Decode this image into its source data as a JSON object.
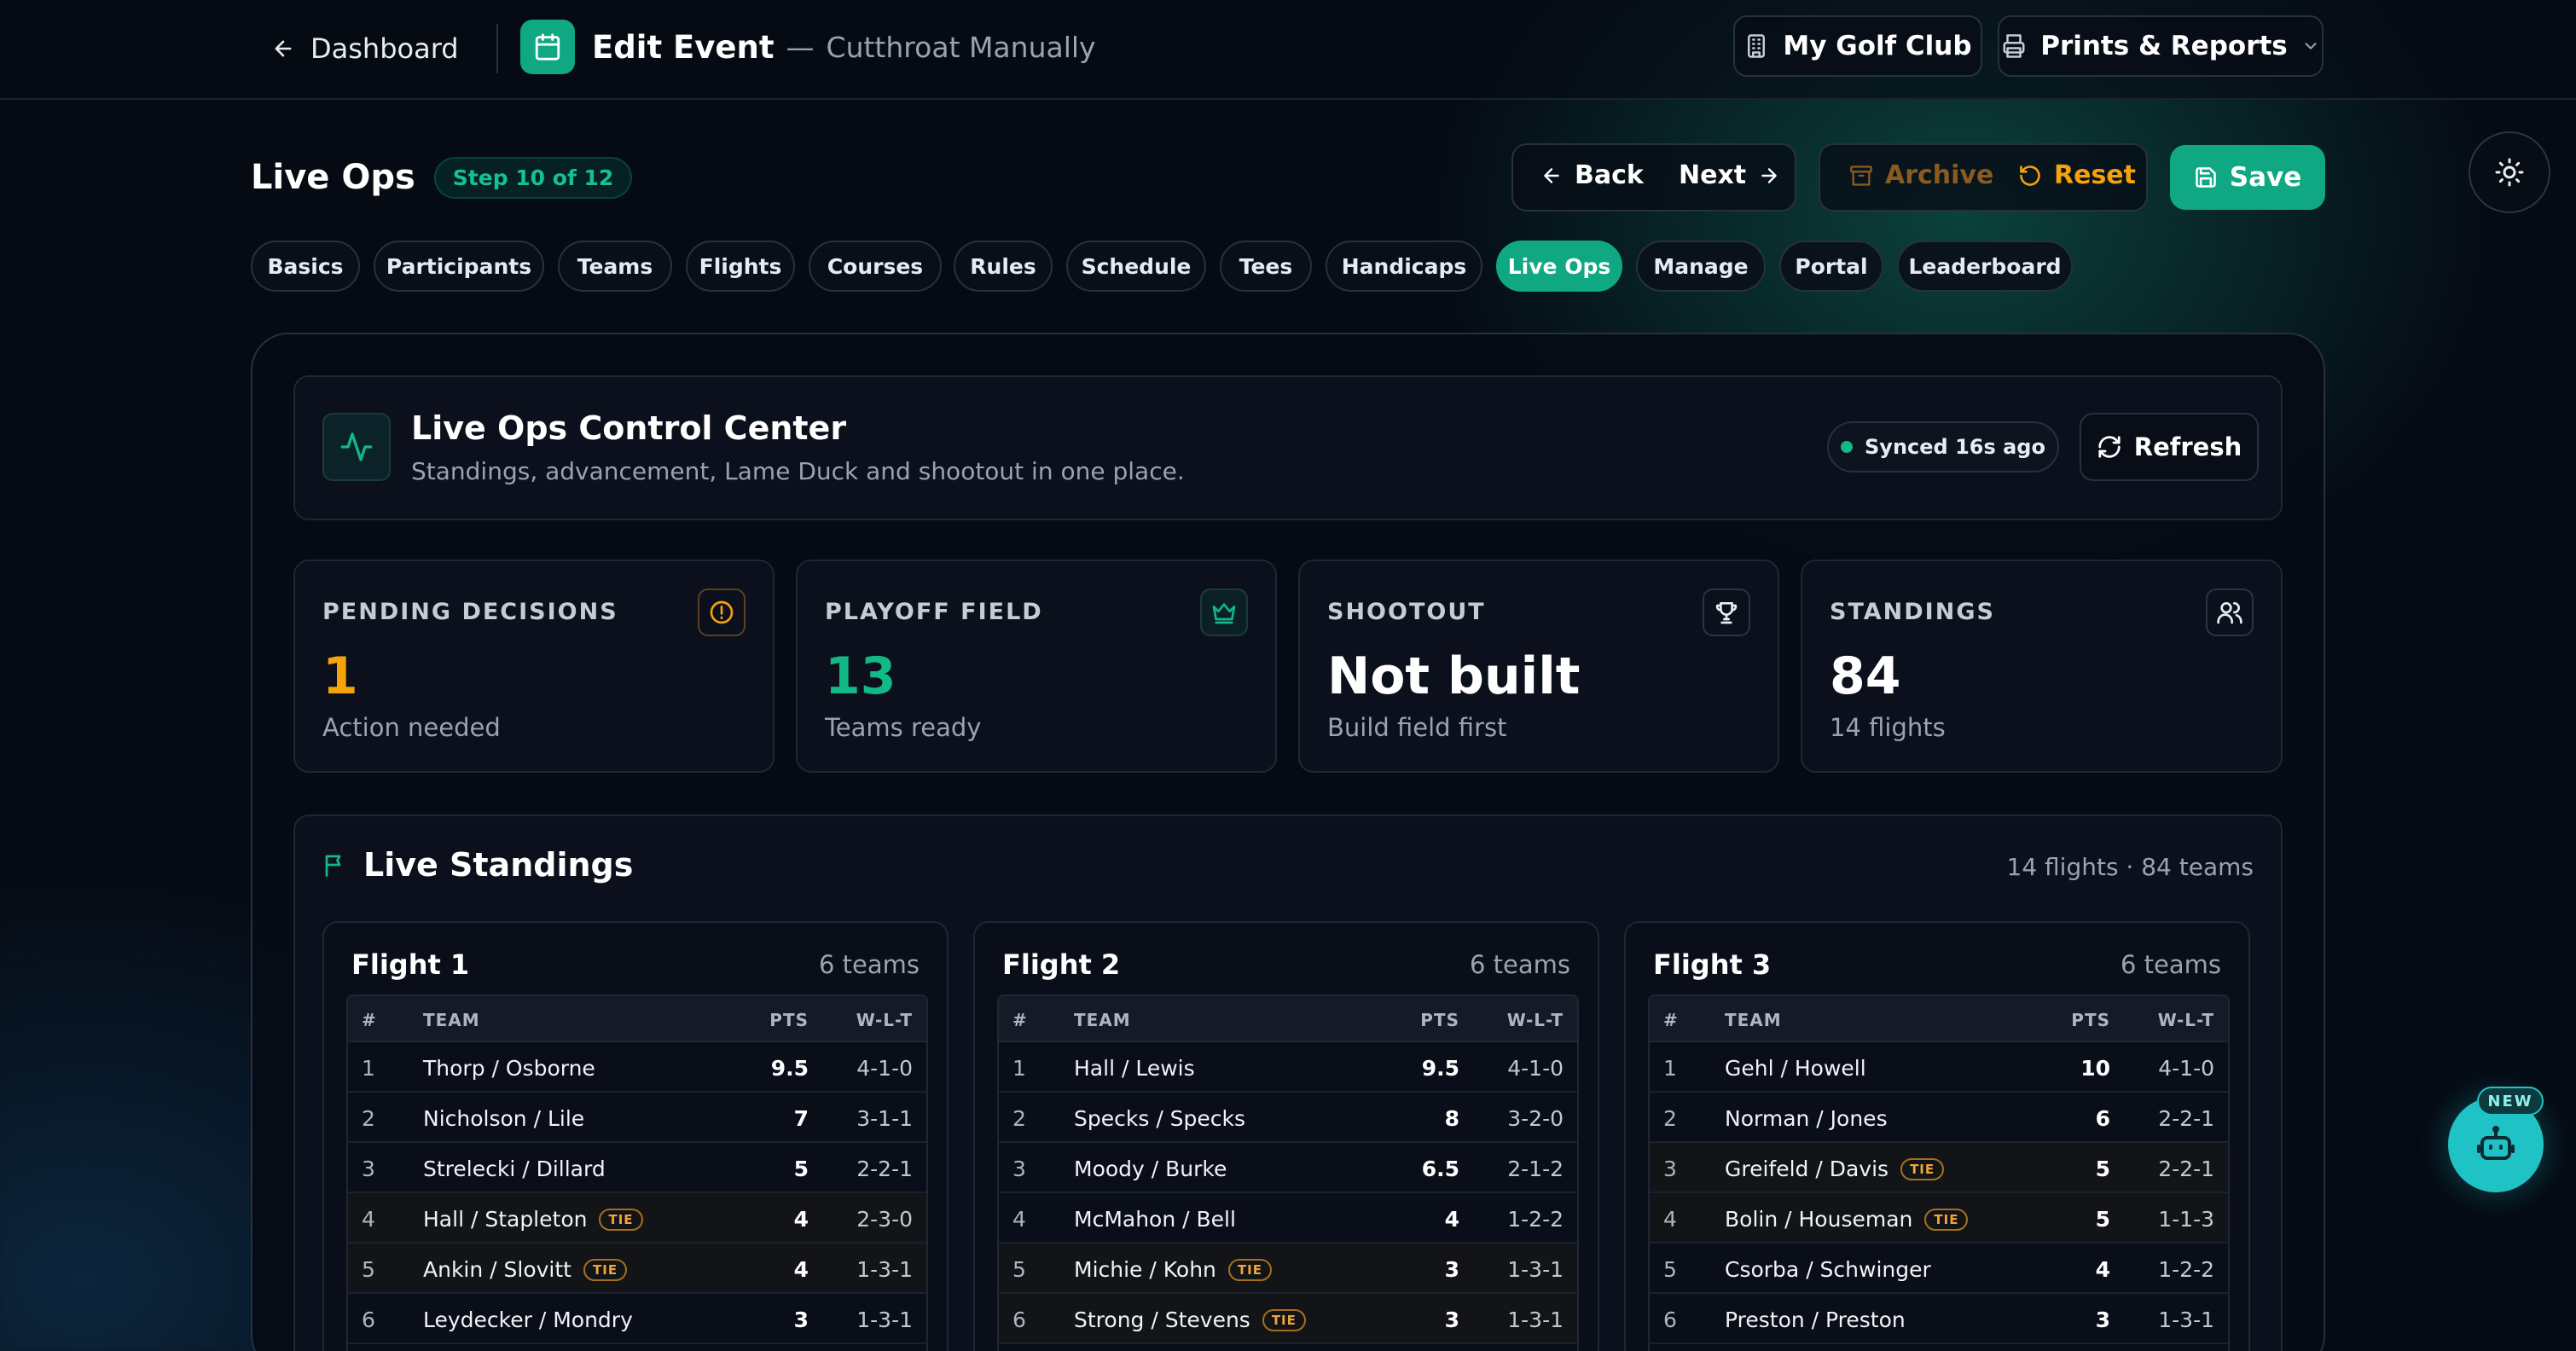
{
  "topbar": {
    "back_label": "Dashboard",
    "title": "Edit Event",
    "separator": "—",
    "subtitle": "Cutthroat Manually",
    "my_club_label": "My Golf Club",
    "prints_label": "Prints & Reports"
  },
  "header": {
    "title": "Live Ops",
    "step_badge": "Step 10 of 12",
    "back_label": "Back",
    "next_label": "Next",
    "archive_label": "Archive",
    "reset_label": "Reset",
    "save_label": "Save"
  },
  "tabs": [
    {
      "label": "Basics"
    },
    {
      "label": "Participants"
    },
    {
      "label": "Teams"
    },
    {
      "label": "Flights"
    },
    {
      "label": "Courses"
    },
    {
      "label": "Rules"
    },
    {
      "label": "Schedule"
    },
    {
      "label": "Tees"
    },
    {
      "label": "Handicaps"
    },
    {
      "label": "Live Ops",
      "active": true
    },
    {
      "label": "Manage"
    },
    {
      "label": "Portal"
    },
    {
      "label": "Leaderboard"
    }
  ],
  "control_center": {
    "title": "Live Ops Control Center",
    "subtitle": "Standings, advancement, Lame Duck and shootout in one place.",
    "sync_status": "Synced 16s ago",
    "refresh_label": "Refresh"
  },
  "stats": [
    {
      "label": "PENDING DECISIONS",
      "value": "1",
      "sub": "Action needed",
      "color": "#f5a20b",
      "icon": "alert-circle-icon"
    },
    {
      "label": "PLAYOFF FIELD",
      "value": "13",
      "sub": "Teams ready",
      "color": "#12b886",
      "icon": "crown-icon"
    },
    {
      "label": "SHOOTOUT",
      "value": "Not built",
      "sub": "Build field first",
      "color": "#ffffff",
      "icon": "trophy-icon"
    },
    {
      "label": "STANDINGS",
      "value": "84",
      "sub": "14 flights",
      "color": "#ffffff",
      "icon": "users-icon"
    }
  ],
  "standings": {
    "title": "Live Standings",
    "summary": "14 flights · 84 teams",
    "columns": {
      "rank": "#",
      "team": "TEAM",
      "pts": "PTS",
      "wlt": "W-L-T"
    },
    "tie_label": "TIE",
    "flights": [
      {
        "name": "Flight 1",
        "count": "6 teams",
        "rows": [
          {
            "rank": "1",
            "team": "Thorp / Osborne",
            "pts": "9.5",
            "wlt": "4-1-0",
            "tie": false
          },
          {
            "rank": "2",
            "team": "Nicholson / Lile",
            "pts": "7",
            "wlt": "3-1-1",
            "tie": false
          },
          {
            "rank": "3",
            "team": "Strelecki / Dillard",
            "pts": "5",
            "wlt": "2-2-1",
            "tie": false
          },
          {
            "rank": "4",
            "team": "Hall / Stapleton",
            "pts": "4",
            "wlt": "2-3-0",
            "tie": true
          },
          {
            "rank": "5",
            "team": "Ankin / Slovitt",
            "pts": "4",
            "wlt": "1-3-1",
            "tie": true
          },
          {
            "rank": "6",
            "team": "Leydecker / Mondry",
            "pts": "3",
            "wlt": "1-3-1",
            "tie": false
          }
        ]
      },
      {
        "name": "Flight 2",
        "count": "6 teams",
        "rows": [
          {
            "rank": "1",
            "team": "Hall / Lewis",
            "pts": "9.5",
            "wlt": "4-1-0",
            "tie": false
          },
          {
            "rank": "2",
            "team": "Specks / Specks",
            "pts": "8",
            "wlt": "3-2-0",
            "tie": false
          },
          {
            "rank": "3",
            "team": "Moody / Burke",
            "pts": "6.5",
            "wlt": "2-1-2",
            "tie": false
          },
          {
            "rank": "4",
            "team": "McMahon / Bell",
            "pts": "4",
            "wlt": "1-2-2",
            "tie": false
          },
          {
            "rank": "5",
            "team": "Michie / Kohn",
            "pts": "3",
            "wlt": "1-3-1",
            "tie": true
          },
          {
            "rank": "6",
            "team": "Strong / Stevens",
            "pts": "3",
            "wlt": "1-3-1",
            "tie": true
          }
        ]
      },
      {
        "name": "Flight 3",
        "count": "6 teams",
        "rows": [
          {
            "rank": "1",
            "team": "Gehl / Howell",
            "pts": "10",
            "wlt": "4-1-0",
            "tie": false
          },
          {
            "rank": "2",
            "team": "Norman / Jones",
            "pts": "6",
            "wlt": "2-2-1",
            "tie": false
          },
          {
            "rank": "3",
            "team": "Greifeld / Davis",
            "pts": "5",
            "wlt": "2-2-1",
            "tie": true
          },
          {
            "rank": "4",
            "team": "Bolin / Houseman",
            "pts": "5",
            "wlt": "1-1-3",
            "tie": true
          },
          {
            "rank": "5",
            "team": "Csorba / Schwinger",
            "pts": "4",
            "wlt": "1-2-2",
            "tie": false
          },
          {
            "rank": "6",
            "team": "Preston / Preston",
            "pts": "3",
            "wlt": "1-3-1",
            "tie": false
          }
        ]
      }
    ]
  },
  "assistant": {
    "badge": "NEW"
  },
  "colors": {
    "accent": "#0fa883",
    "warning": "#f5a20b",
    "teal": "#1fc3c6"
  }
}
